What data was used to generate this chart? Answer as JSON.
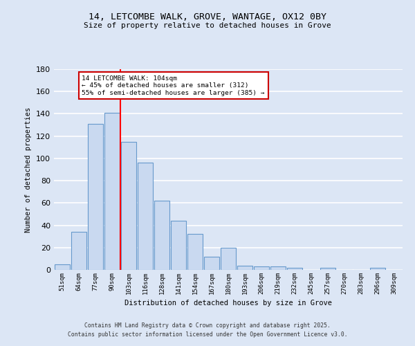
{
  "title_line1": "14, LETCOMBE WALK, GROVE, WANTAGE, OX12 0BY",
  "title_line2": "Size of property relative to detached houses in Grove",
  "xlabel": "Distribution of detached houses by size in Grove",
  "ylabel": "Number of detached properties",
  "categories": [
    "51sqm",
    "64sqm",
    "77sqm",
    "90sqm",
    "103sqm",
    "116sqm",
    "128sqm",
    "141sqm",
    "154sqm",
    "167sqm",
    "180sqm",
    "193sqm",
    "206sqm",
    "219sqm",
    "232sqm",
    "245sqm",
    "257sqm",
    "270sqm",
    "283sqm",
    "296sqm",
    "309sqm"
  ],
  "values": [
    5,
    34,
    131,
    141,
    115,
    96,
    62,
    44,
    32,
    12,
    20,
    4,
    3,
    3,
    2,
    0,
    2,
    0,
    0,
    2,
    0
  ],
  "bar_color": "#c9d9f0",
  "bar_edge_color": "#6699cc",
  "background_color": "#dce6f5",
  "grid_color": "#ffffff",
  "red_line_index": 4,
  "annotation_text": "14 LETCOMBE WALK: 104sqm\n← 45% of detached houses are smaller (312)\n55% of semi-detached houses are larger (385) →",
  "annotation_box_color": "#ffffff",
  "annotation_box_edge": "#cc0000",
  "ylim": [
    0,
    180
  ],
  "yticks": [
    0,
    20,
    40,
    60,
    80,
    100,
    120,
    140,
    160,
    180
  ],
  "footer_line1": "Contains HM Land Registry data © Crown copyright and database right 2025.",
  "footer_line2": "Contains public sector information licensed under the Open Government Licence v3.0."
}
